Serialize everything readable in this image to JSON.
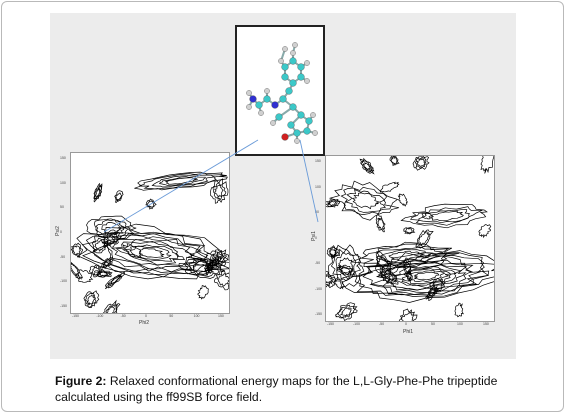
{
  "figure": {
    "label": "Figure 2:",
    "caption_text": " Relaxed conformational energy maps for the L,L-Gly-Phe-Phe tripeptide calculated using the ff99SB force field."
  },
  "left_plot": {
    "xlabel": "Phi2",
    "ylabel": "Psi2",
    "x_ticks": [
      "-150",
      "-100",
      "-50",
      "0",
      "50",
      "100",
      "150"
    ],
    "y_ticks": [
      "150",
      "100",
      "50",
      "0",
      "-50",
      "-100",
      "-150"
    ]
  },
  "right_plot": {
    "xlabel": "Phi1",
    "ylabel": "Psi1",
    "x_ticks": [
      "-150",
      "-100",
      "-50",
      "0",
      "50",
      "100",
      "150"
    ],
    "y_ticks": [
      "150",
      "100",
      "50",
      "0",
      "-50",
      "-100",
      "-150"
    ]
  },
  "colors": {
    "connector": "#6a9bd8",
    "carbon": "#3cc8c8",
    "hydrogen": "#d0d0d0",
    "nitrogen": "#3030d0",
    "oxygen": "#d02020"
  }
}
